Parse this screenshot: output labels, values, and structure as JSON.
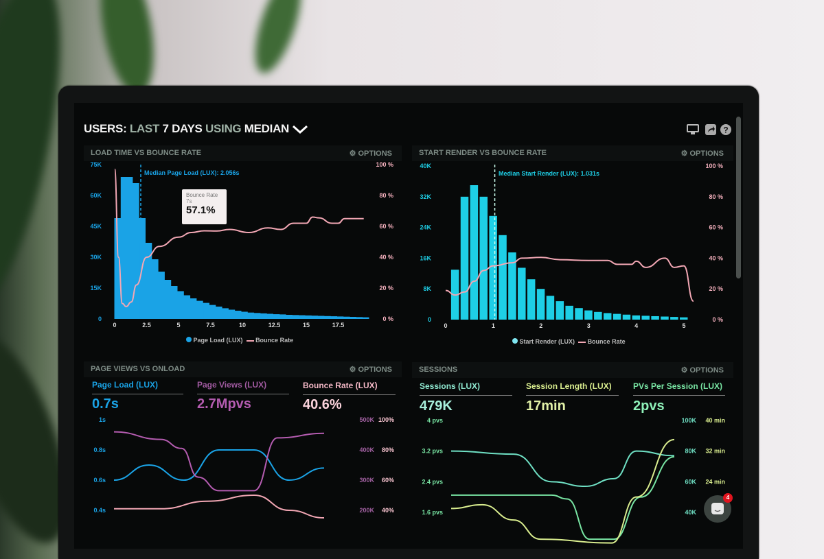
{
  "header": {
    "users": "USERS:",
    "last": "LAST",
    "days": "7 DAYS",
    "using": "USING",
    "median": "MEDIAN",
    "icons": [
      "monitor-icon",
      "share-icon",
      "help-icon"
    ]
  },
  "options_label": "OPTIONS",
  "panels": {
    "load": {
      "title": "LOAD TIME VS BOUNCE RATE",
      "median": "Median Page Load (LUX): 2.056s",
      "tooltip": {
        "label": "Bounce Rate",
        "x": "7s",
        "value": "57.1%"
      },
      "legend": [
        "Page Load (LUX)",
        "Bounce Rate"
      ]
    },
    "render": {
      "title": "START RENDER VS BOUNCE RATE",
      "median": "Median Start Render (LUX): 1.031s",
      "legend": [
        "Start Render (LUX)",
        "Bounce Rate"
      ]
    },
    "views": {
      "title": "PAGE VIEWS VS ONLOAD",
      "kpis": [
        {
          "label": "Page Load (LUX)",
          "value": "0.7s"
        },
        {
          "label": "Page Views (LUX)",
          "value": "2.7Mpvs"
        },
        {
          "label": "Bounce Rate (LUX)",
          "value": "40.6%"
        }
      ]
    },
    "sessions": {
      "title": "SESSIONS",
      "kpis": [
        {
          "label": "Sessions (LUX)",
          "value": "479K"
        },
        {
          "label": "Session Length (LUX)",
          "value": "17min"
        },
        {
          "label": "PVs Per Session (LUX)",
          "value": "2pvs"
        }
      ]
    }
  },
  "chat_badge": "4",
  "colors": {
    "blue": "#1aa3e6",
    "cyan": "#1ecfe6",
    "pink": "#f2a7b4",
    "purple": "#b45cb0",
    "teal": "#6fe0c4",
    "green": "#79e6a4",
    "yellow": "#d8ec8e"
  },
  "chart_data": [
    {
      "type": "bar",
      "title": "LOAD TIME VS BOUNCE RATE",
      "x_ticks": [
        "0",
        "2.5",
        "5",
        "7.5",
        "10",
        "12.5",
        "15",
        "17.5"
      ],
      "xlim": [
        0,
        20
      ],
      "y_left_ticks": [
        "0",
        "15K",
        "30K",
        "45K",
        "60K",
        "75K"
      ],
      "ylim_left": [
        0,
        75000
      ],
      "y_right_ticks": [
        "0 %",
        "20 %",
        "40 %",
        "60 %",
        "80 %",
        "100 %"
      ],
      "ylim_right": [
        0,
        100
      ],
      "bar_x_step": 0.5,
      "series": [
        {
          "name": "Page Load (LUX)",
          "type": "bar",
          "x": [
            0,
            0.5,
            1,
            1.5,
            2,
            2.5,
            3,
            3.5,
            4,
            4.5,
            5,
            5.5,
            6,
            6.5,
            7,
            7.5,
            8,
            8.5,
            9,
            9.5,
            10,
            10.5,
            11,
            11.5,
            12,
            12.5,
            13,
            13.5,
            14,
            14.5,
            15,
            15.5,
            16,
            16.5,
            17,
            17.5,
            18,
            18.5,
            19
          ],
          "values": [
            49000,
            69000,
            66000,
            49000,
            37000,
            29000,
            23000,
            19000,
            16000,
            13500,
            11500,
            10000,
            8800,
            7800,
            6800,
            6000,
            5200,
            4500,
            4000,
            3500,
            3100,
            2900,
            2700,
            2500,
            2300,
            2200,
            2000,
            1900,
            1800,
            1700,
            1600,
            1500,
            1400,
            1300,
            1200,
            1100,
            1000,
            900,
            800
          ]
        },
        {
          "name": "Bounce Rate",
          "type": "line",
          "x": [
            0,
            0.3,
            0.6,
            0.9,
            1.3,
            1.7,
            2.5,
            3.5,
            5,
            6,
            7,
            8,
            9,
            10.5,
            12,
            13,
            14,
            15,
            15.5,
            16,
            17,
            17.5,
            18,
            19.5
          ],
          "values": [
            97,
            40,
            10,
            8,
            11,
            22,
            40,
            47,
            53,
            56,
            57.1,
            57,
            58,
            56,
            59,
            58,
            62,
            62,
            66,
            65.5,
            62,
            62,
            65,
            65
          ]
        }
      ]
    },
    {
      "type": "bar",
      "title": "START RENDER VS BOUNCE RATE",
      "x_ticks": [
        "0",
        "1",
        "2",
        "3",
        "4",
        "5"
      ],
      "xlim": [
        0,
        5.3
      ],
      "y_left_ticks": [
        "0",
        "8K",
        "16K",
        "24K",
        "32K",
        "40K"
      ],
      "ylim_left": [
        0,
        40000
      ],
      "y_right_ticks": [
        "0 %",
        "20 %",
        "40 %",
        "60 %",
        "80 %",
        "100 %"
      ],
      "ylim_right": [
        0,
        100
      ],
      "bar_x_step": 0.2,
      "series": [
        {
          "name": "Start Render (LUX)",
          "type": "bar",
          "x": [
            0.2,
            0.4,
            0.6,
            0.8,
            1,
            1.2,
            1.4,
            1.6,
            1.8,
            2,
            2.2,
            2.4,
            2.6,
            2.8,
            3,
            3.2,
            3.4,
            3.6,
            3.8,
            4,
            4.2,
            4.4,
            4.6,
            4.8,
            5
          ],
          "values": [
            13000,
            32000,
            35000,
            32000,
            27000,
            22000,
            17500,
            13500,
            10500,
            8000,
            6200,
            4800,
            3600,
            3000,
            2400,
            2000,
            1700,
            1500,
            1300,
            1100,
            1000,
            900,
            800,
            700,
            600
          ]
        },
        {
          "name": "Bounce Rate",
          "type": "line",
          "x": [
            0,
            0.2,
            0.4,
            0.6,
            0.8,
            1,
            1.4,
            1.6,
            2,
            2.4,
            3,
            3.4,
            3.6,
            3.9,
            4,
            4.2,
            4.6,
            4.8,
            5,
            5.2
          ],
          "values": [
            19,
            16,
            18,
            25,
            32,
            35,
            37,
            40,
            40.5,
            39,
            38.5,
            38.5,
            36,
            36,
            38,
            34,
            40,
            34,
            35,
            12
          ]
        }
      ]
    },
    {
      "type": "line",
      "title": "PAGE VIEWS VS ONLOAD",
      "xlim": [
        0,
        10
      ],
      "y_left_ticks": [
        "0.4s",
        "0.6s",
        "0.8s",
        "1s"
      ],
      "ylim_left": [
        0.4,
        1
      ],
      "y_right_ticks": [
        "200K",
        "300K",
        "400K",
        "500K"
      ],
      "ylim_right_views": [
        200000,
        500000
      ],
      "y_right2_ticks": [
        "40%",
        "60%",
        "80%",
        "100%"
      ],
      "ylim_right_bounce": [
        40,
        100
      ],
      "series": [
        {
          "name": "Page Load (LUX)",
          "axis": "left",
          "x": [
            0,
            1.5,
            3,
            4.5,
            6,
            7.5,
            9
          ],
          "values": [
            0.6,
            0.7,
            0.6,
            0.8,
            0.8,
            0.6,
            0.68
          ]
        },
        {
          "name": "Page Views (LUX)",
          "axis": "right_views",
          "x": [
            0,
            2,
            2.9,
            3.6,
            4.5,
            6,
            7,
            9
          ],
          "values": [
            460000,
            435000,
            405000,
            310000,
            265000,
            265000,
            440000,
            455000
          ]
        },
        {
          "name": "Bounce Rate (LUX)",
          "axis": "right_bounce",
          "x": [
            0,
            2,
            4,
            6,
            7.5,
            9
          ],
          "values": [
            41,
            41,
            46,
            50,
            40,
            35
          ]
        }
      ]
    },
    {
      "type": "line",
      "title": "SESSIONS",
      "xlim": [
        0,
        10
      ],
      "y_left_ticks": [
        "1.6 pvs",
        "2.4 pvs",
        "3.2 pvs",
        "4 pvs"
      ],
      "ylim_left": [
        1.6,
        4
      ],
      "y_right_ticks": [
        "40K",
        "60K",
        "80K",
        "100K"
      ],
      "ylim_right_sessions": [
        40000,
        100000
      ],
      "y_right2_ticks": [
        "24 min",
        "32 min",
        "40 min"
      ],
      "ylim_right_length": [
        16,
        40
      ],
      "series": [
        {
          "name": "Sessions (LUX)",
          "axis": "right_sessions",
          "x": [
            0,
            2.8,
            4.5,
            6,
            7.3,
            8.3,
            10
          ],
          "values": [
            80000,
            78000,
            60000,
            57000,
            62000,
            80000,
            77000
          ]
        },
        {
          "name": "PVs Per Session (LUX)",
          "axis": "left",
          "x": [
            0,
            4.5,
            5.2,
            6.2,
            7.3,
            8.5,
            10
          ],
          "values": [
            2.05,
            2.05,
            1.95,
            0.9,
            0.9,
            2.0,
            3.05
          ]
        },
        {
          "name": "Session Length (LUX)",
          "axis": "right_length",
          "x": [
            0,
            1.4,
            2.8,
            4,
            7.2,
            8.3,
            10
          ],
          "values": [
            17,
            18,
            14,
            9,
            8,
            20,
            35
          ]
        }
      ]
    }
  ]
}
